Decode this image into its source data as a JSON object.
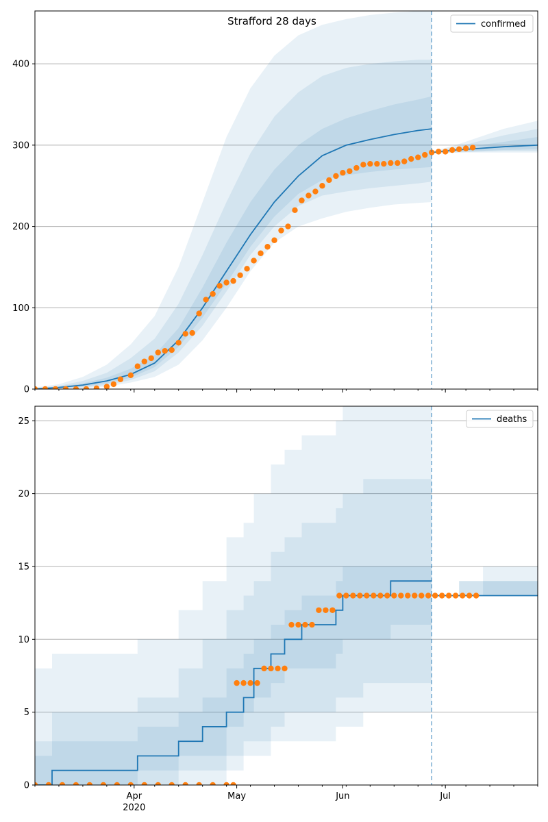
{
  "figure": {
    "title": "Strafford 28 days"
  },
  "colors": {
    "model": "#1f77b4",
    "observed": "#ff7f0e",
    "band": "#1f77b4",
    "grid": "#b0b0b0"
  },
  "chart_data": [
    {
      "type": "line",
      "panel": "top",
      "legend": {
        "label": "confirmed",
        "placement": "top-right"
      },
      "xlim": [
        "2020-03-03",
        "2020-07-28"
      ],
      "ylim": [
        0,
        465
      ],
      "yticks": [
        0,
        100,
        200,
        300,
        400
      ],
      "xtick_labels": [
        {
          "date": "2020-04-01",
          "label": "Apr"
        },
        {
          "date": "2020-05-01",
          "label": "May"
        },
        {
          "date": "2020-06-01",
          "label": "Jun"
        },
        {
          "date": "2020-07-01",
          "label": "Jul"
        }
      ],
      "year_label": {
        "date": "2020-04-01",
        "label": "2020"
      },
      "vline_date": "2020-06-27",
      "grid": "y",
      "model": {
        "dates": [
          "2020-03-03",
          "2020-03-10",
          "2020-03-17",
          "2020-03-24",
          "2020-03-31",
          "2020-04-07",
          "2020-04-14",
          "2020-04-21",
          "2020-04-28",
          "2020-05-05",
          "2020-05-12",
          "2020-05-19",
          "2020-05-26",
          "2020-06-02",
          "2020-06-09",
          "2020-06-16",
          "2020-06-23",
          "2020-06-27"
        ],
        "median": [
          0,
          2,
          5,
          10,
          18,
          32,
          60,
          100,
          145,
          190,
          230,
          262,
          287,
          300,
          307,
          313,
          318,
          320
        ],
        "band_outer_low": [
          0,
          0,
          1,
          3,
          8,
          15,
          30,
          60,
          100,
          145,
          180,
          200,
          210,
          218,
          223,
          227,
          229,
          230
        ],
        "band_outer_high": [
          2,
          6,
          15,
          30,
          55,
          90,
          150,
          230,
          310,
          370,
          410,
          435,
          448,
          455,
          460,
          463,
          465,
          465
        ],
        "band_mid_low": [
          0,
          1,
          2,
          5,
          11,
          22,
          45,
          78,
          120,
          165,
          200,
          225,
          238,
          243,
          247,
          250,
          253,
          255
        ],
        "band_mid_high": [
          1,
          4,
          10,
          20,
          38,
          62,
          105,
          165,
          230,
          290,
          335,
          365,
          385,
          395,
          400,
          403,
          405,
          405
        ],
        "band_inner_low": [
          0,
          1,
          3,
          7,
          14,
          27,
          52,
          88,
          130,
          175,
          212,
          240,
          257,
          263,
          267,
          270,
          272,
          273
        ],
        "band_inner_high": [
          1,
          3,
          7,
          14,
          25,
          42,
          75,
          125,
          180,
          230,
          270,
          300,
          320,
          333,
          342,
          350,
          356,
          360
        ]
      },
      "forecast": {
        "dates": [
          "2020-06-27",
          "2020-07-04",
          "2020-07-11",
          "2020-07-18",
          "2020-07-28"
        ],
        "median": [
          291,
          294,
          296,
          298,
          300
        ],
        "band_outer_low": [
          290,
          291,
          291,
          291,
          291
        ],
        "band_outer_high": [
          292,
          300,
          310,
          320,
          330
        ],
        "band_mid_low": [
          290,
          291,
          292,
          293,
          293
        ],
        "band_mid_high": [
          292,
          297,
          305,
          312,
          320
        ],
        "band_inner_low": [
          291,
          292,
          293,
          294,
          295
        ],
        "band_inner_high": [
          292,
          295,
          300,
          304,
          310
        ]
      },
      "observed": {
        "dates": [
          "2020-03-03",
          "2020-03-06",
          "2020-03-09",
          "2020-03-12",
          "2020-03-15",
          "2020-03-18",
          "2020-03-21",
          "2020-03-24",
          "2020-03-26",
          "2020-03-28",
          "2020-03-31",
          "2020-04-02",
          "2020-04-04",
          "2020-04-06",
          "2020-04-08",
          "2020-04-10",
          "2020-04-12",
          "2020-04-14",
          "2020-04-16",
          "2020-04-18",
          "2020-04-20",
          "2020-04-22",
          "2020-04-24",
          "2020-04-26",
          "2020-04-28",
          "2020-04-30",
          "2020-05-02",
          "2020-05-04",
          "2020-05-06",
          "2020-05-08",
          "2020-05-10",
          "2020-05-12",
          "2020-05-14",
          "2020-05-16",
          "2020-05-18",
          "2020-05-20",
          "2020-05-22",
          "2020-05-24",
          "2020-05-26",
          "2020-05-28",
          "2020-05-30",
          "2020-06-01",
          "2020-06-03",
          "2020-06-05",
          "2020-06-07",
          "2020-06-09",
          "2020-06-11",
          "2020-06-13",
          "2020-06-15",
          "2020-06-17",
          "2020-06-19",
          "2020-06-21",
          "2020-06-23",
          "2020-06-25",
          "2020-06-27",
          "2020-06-29",
          "2020-07-01",
          "2020-07-03",
          "2020-07-05",
          "2020-07-07",
          "2020-07-09"
        ],
        "values": [
          0,
          0,
          0,
          0,
          0,
          0,
          1,
          3,
          6,
          12,
          17,
          28,
          34,
          38,
          45,
          47,
          48,
          57,
          68,
          69,
          93,
          110,
          117,
          127,
          131,
          133,
          140,
          148,
          158,
          167,
          175,
          183,
          195,
          200,
          220,
          232,
          238,
          243,
          250,
          257,
          262,
          266,
          268,
          272,
          276,
          277,
          277,
          277,
          278,
          278,
          280,
          283,
          285,
          288,
          291,
          292,
          292,
          294,
          295,
          296,
          297
        ]
      }
    },
    {
      "type": "line",
      "panel": "bottom",
      "legend": {
        "label": "deaths",
        "placement": "top-right"
      },
      "xlim": [
        "2020-03-03",
        "2020-07-28"
      ],
      "ylim": [
        0,
        26
      ],
      "yticks": [
        0,
        5,
        10,
        15,
        20,
        25
      ],
      "xtick_labels": [
        {
          "date": "2020-04-01",
          "label": "Apr"
        },
        {
          "date": "2020-05-01",
          "label": "May"
        },
        {
          "date": "2020-06-01",
          "label": "Jun"
        },
        {
          "date": "2020-07-01",
          "label": "Jul"
        }
      ],
      "year_label": {
        "date": "2020-04-01",
        "label": "2020"
      },
      "vline_date": "2020-06-27",
      "grid": "y",
      "model": {
        "dates": [
          "2020-03-03",
          "2020-03-08",
          "2020-04-02",
          "2020-04-14",
          "2020-04-21",
          "2020-04-28",
          "2020-05-03",
          "2020-05-06",
          "2020-05-11",
          "2020-05-15",
          "2020-05-20",
          "2020-05-30",
          "2020-06-01",
          "2020-06-07",
          "2020-06-15",
          "2020-06-27"
        ],
        "median": [
          0,
          1,
          2,
          3,
          4,
          5,
          6,
          8,
          9,
          10,
          11,
          12,
          13,
          13,
          14,
          14
        ],
        "band_outer_low": [
          0,
          0,
          0,
          0,
          0,
          1,
          2,
          2,
          3,
          3,
          3,
          4,
          4,
          5,
          5,
          6
        ],
        "band_outer_high": [
          8,
          9,
          10,
          12,
          14,
          17,
          18,
          20,
          22,
          23,
          24,
          25,
          26,
          26,
          26,
          26
        ],
        "band_mid_low": [
          0,
          0,
          0,
          1,
          1,
          2,
          3,
          3,
          4,
          5,
          5,
          6,
          6,
          7,
          7,
          8
        ],
        "band_mid_high": [
          3,
          5,
          6,
          8,
          10,
          12,
          13,
          14,
          16,
          17,
          18,
          19,
          20,
          21,
          21,
          21
        ],
        "band_inner_low": [
          0,
          0,
          1,
          2,
          2,
          4,
          5,
          6,
          7,
          8,
          8,
          9,
          10,
          10,
          11,
          11
        ],
        "band_inner_high": [
          2,
          3,
          4,
          5,
          6,
          8,
          9,
          10,
          11,
          12,
          13,
          14,
          15,
          15,
          15,
          15
        ]
      },
      "forecast": {
        "dates": [
          "2020-06-27",
          "2020-07-05",
          "2020-07-12",
          "2020-07-28"
        ],
        "median": [
          13,
          13,
          13,
          13
        ],
        "band_outer_low": [
          13,
          13,
          13,
          13
        ],
        "band_outer_high": [
          13,
          14,
          15,
          16
        ],
        "band_mid_low": [
          13,
          13,
          13,
          13
        ],
        "band_mid_high": [
          13,
          14,
          14,
          15
        ],
        "band_inner_low": [
          13,
          13,
          13,
          13
        ],
        "band_inner_high": [
          13,
          13,
          14,
          14
        ]
      },
      "observed": {
        "dates": [
          "2020-03-03",
          "2020-03-07",
          "2020-03-11",
          "2020-03-15",
          "2020-03-19",
          "2020-03-23",
          "2020-03-27",
          "2020-03-31",
          "2020-04-04",
          "2020-04-08",
          "2020-04-12",
          "2020-04-16",
          "2020-04-20",
          "2020-04-24",
          "2020-04-28",
          "2020-04-30",
          "2020-05-01",
          "2020-05-03",
          "2020-05-05",
          "2020-05-07",
          "2020-05-09",
          "2020-05-11",
          "2020-05-13",
          "2020-05-15",
          "2020-05-17",
          "2020-05-19",
          "2020-05-21",
          "2020-05-23",
          "2020-05-25",
          "2020-05-27",
          "2020-05-29",
          "2020-05-31",
          "2020-06-02",
          "2020-06-04",
          "2020-06-06",
          "2020-06-08",
          "2020-06-10",
          "2020-06-12",
          "2020-06-14",
          "2020-06-16",
          "2020-06-18",
          "2020-06-20",
          "2020-06-22",
          "2020-06-24",
          "2020-06-26",
          "2020-06-28",
          "2020-06-30",
          "2020-07-02",
          "2020-07-04",
          "2020-07-06",
          "2020-07-08",
          "2020-07-10"
        ],
        "values": [
          0,
          0,
          0,
          0,
          0,
          0,
          0,
          0,
          0,
          0,
          0,
          0,
          0,
          0,
          0,
          0,
          7,
          7,
          7,
          7,
          8,
          8,
          8,
          8,
          11,
          11,
          11,
          11,
          12,
          12,
          12,
          13,
          13,
          13,
          13,
          13,
          13,
          13,
          13,
          13,
          13,
          13,
          13,
          13,
          13,
          13,
          13,
          13,
          13,
          13,
          13,
          13
        ]
      }
    }
  ]
}
